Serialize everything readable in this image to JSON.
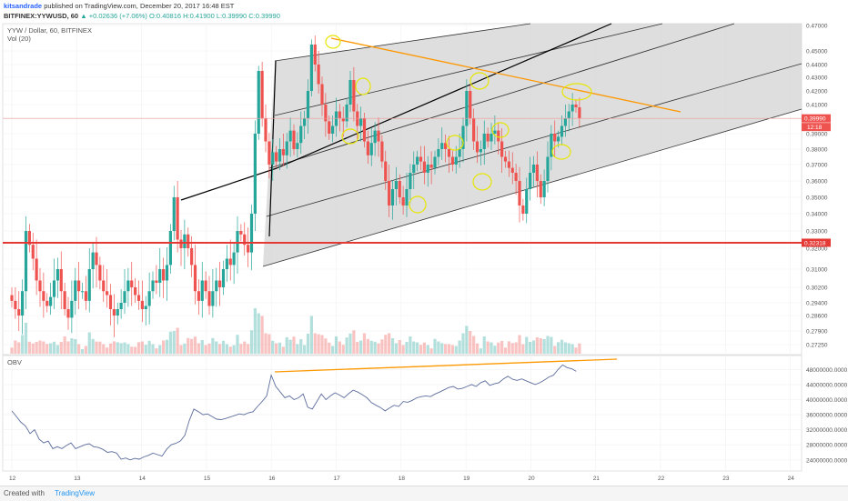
{
  "header": {
    "author": "kitsandrade",
    "published": "published on TradingView.com, December 20, 2017 16:48 EST",
    "symbol": "BITFINEX:YYWUSD, 60",
    "change": "▲ +0.02636 (+7.06%)",
    "ohlc": "O:0.40816 H:0.41900 L:0.39990 C:0.39990",
    "pair_title": "YYW / Dollar, 60, BITFINEX",
    "vol_label": "Vol (20)",
    "obv_label": "OBV"
  },
  "footer": {
    "created": "Created with",
    "brand": "TradingView"
  },
  "colors": {
    "up": "#26a69a",
    "down": "#ef5350",
    "support": "#e53935",
    "trend": "#ff9800",
    "obv": "#5d6d9e",
    "highlight": "#e8e800"
  },
  "chart_data": [
    {
      "type": "candlestick",
      "title": "YYW / Dollar, 60, BITFINEX",
      "x_ticks": [
        "12",
        "13",
        "14",
        "15",
        "16",
        "17",
        "18",
        "19",
        "20",
        "21",
        "22",
        "23",
        "24"
      ],
      "x_range": [
        11.9,
        24.1
      ],
      "y_ticks": [
        "0.47000",
        "0.45000",
        "0.44000",
        "0.43000",
        "0.42000",
        "0.41000",
        "0.40000",
        "0.39000",
        "0.38000",
        "0.37000",
        "0.36000",
        "0.35000",
        "0.34000",
        "0.33000",
        "0.32000",
        "0.31000",
        "0.30200",
        "0.29400",
        "0.28600",
        "0.27900",
        "0.27250"
      ],
      "last_price": "0.39990",
      "last_price_value": 0.3999,
      "countdown": "12:18",
      "support_label": "0.32318",
      "support_value": 0.32318,
      "closes": [
        0.295,
        0.29,
        0.286,
        0.3,
        0.33,
        0.322,
        0.315,
        0.305,
        0.3,
        0.295,
        0.292,
        0.297,
        0.305,
        0.31,
        0.3,
        0.29,
        0.285,
        0.295,
        0.305,
        0.3,
        0.3,
        0.295,
        0.31,
        0.318,
        0.312,
        0.305,
        0.3,
        0.298,
        0.29,
        0.286,
        0.29,
        0.294,
        0.3,
        0.305,
        0.302,
        0.298,
        0.295,
        0.29,
        0.292,
        0.3,
        0.305,
        0.304,
        0.31,
        0.305,
        0.312,
        0.33,
        0.35,
        0.325,
        0.32,
        0.328,
        0.32,
        0.312,
        0.3,
        0.295,
        0.305,
        0.3,
        0.292,
        0.3,
        0.305,
        0.302,
        0.31,
        0.315,
        0.312,
        0.318,
        0.33,
        0.328,
        0.322,
        0.318,
        0.34,
        0.39,
        0.435,
        0.4,
        0.385,
        0.37,
        0.378,
        0.372,
        0.38,
        0.376,
        0.385,
        0.392,
        0.38,
        0.384,
        0.395,
        0.4,
        0.42,
        0.455,
        0.44,
        0.425,
        0.41,
        0.398,
        0.39,
        0.395,
        0.405,
        0.4,
        0.398,
        0.41,
        0.428,
        0.405,
        0.395,
        0.4,
        0.385,
        0.376,
        0.384,
        0.392,
        0.385,
        0.372,
        0.36,
        0.345,
        0.355,
        0.36,
        0.35,
        0.345,
        0.355,
        0.365,
        0.37,
        0.375,
        0.372,
        0.365,
        0.37,
        0.368,
        0.375,
        0.38,
        0.384,
        0.38,
        0.375,
        0.37,
        0.375,
        0.38,
        0.395,
        0.42,
        0.4,
        0.385,
        0.378,
        0.38,
        0.39,
        0.385,
        0.39,
        0.392,
        0.385,
        0.375,
        0.372,
        0.368,
        0.365,
        0.36,
        0.345,
        0.34,
        0.355,
        0.365,
        0.37,
        0.36,
        0.35,
        0.36,
        0.375,
        0.39,
        0.385,
        0.388,
        0.395,
        0.4,
        0.405,
        0.41,
        0.408,
        0.3999
      ],
      "volume_y_ticks": []
    },
    {
      "type": "line",
      "title": "OBV",
      "y_ticks": [
        "48000000.0000",
        "44000000.0000",
        "40000000.0000",
        "36000000.0000",
        "32000000.0000",
        "28000000.0000",
        "24000000.0000"
      ],
      "y_range": [
        22500000,
        50500000
      ],
      "values": [
        37000000,
        35500000,
        34000000,
        33000000,
        31000000,
        32000000,
        29500000,
        28500000,
        29000000,
        27000000,
        27500000,
        27000000,
        27800000,
        28500000,
        27000000,
        27500000,
        28000000,
        28300000,
        27500000,
        27300000,
        26800000,
        26000000,
        26200000,
        25800000,
        24200000,
        24500000,
        24000000,
        24400000,
        24200000,
        24800000,
        25200000,
        25800000,
        25400000,
        25000000,
        26800000,
        28000000,
        28400000,
        29000000,
        30500000,
        34500000,
        37500000,
        36800000,
        36000000,
        36200000,
        35500000,
        34800000,
        34700000,
        35000000,
        35400000,
        35800000,
        36200000,
        36000000,
        36500000,
        36800000,
        38200000,
        39500000,
        41000000,
        46500000,
        43500000,
        42000000,
        40500000,
        41000000,
        40000000,
        40500000,
        41500000,
        38000000,
        37500000,
        39500000,
        41500000,
        40000000,
        41000000,
        41800000,
        41200000,
        40500000,
        41600000,
        42500000,
        42000000,
        41300000,
        40500000,
        39200000,
        38500000,
        37900000,
        37000000,
        37800000,
        38500000,
        38200000,
        39500000,
        39300000,
        39800000,
        40500000,
        40800000,
        41000000,
        40800000,
        41500000,
        42000000,
        42600000,
        43200000,
        43500000,
        42800000,
        43000000,
        43500000,
        44000000,
        43500000,
        44500000,
        45000000,
        43800000,
        44200000,
        44500000,
        45500000,
        46200000,
        45400000,
        45100000,
        45500000,
        45000000,
        44500000,
        44000000,
        44500000,
        45200000,
        46000000,
        46500000,
        48000000,
        49200000,
        48500000,
        48200000,
        47500000
      ]
    }
  ]
}
